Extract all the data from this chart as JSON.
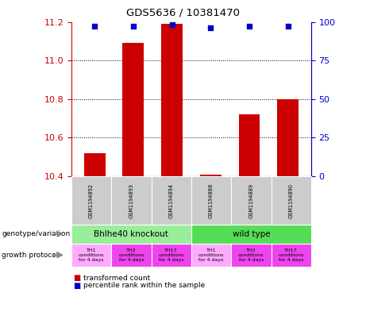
{
  "title": "GDS5636 / 10381470",
  "samples": [
    "GSM1194892",
    "GSM1194893",
    "GSM1194894",
    "GSM1194888",
    "GSM1194889",
    "GSM1194890"
  ],
  "transformed_counts": [
    10.52,
    11.09,
    11.19,
    10.41,
    10.72,
    10.8
  ],
  "percentile_ranks": [
    97,
    97,
    98,
    96,
    97,
    97
  ],
  "ylim": [
    10.4,
    11.2
  ],
  "yticks": [
    10.4,
    10.6,
    10.8,
    11.0,
    11.2
  ],
  "right_yticks": [
    0,
    25,
    50,
    75,
    100
  ],
  "right_ylim": [
    0,
    100
  ],
  "bar_color": "#cc0000",
  "dot_color": "#0000cc",
  "genotype_groups": [
    {
      "label": "Bhlhe40 knockout",
      "start": 0,
      "end": 3,
      "color": "#99ee99"
    },
    {
      "label": "wild type",
      "start": 3,
      "end": 6,
      "color": "#55dd55"
    }
  ],
  "proto_colors": [
    "#ffaaff",
    "#ee44ee",
    "#ee44ee",
    "#ffaaff",
    "#ee44ee",
    "#ee44ee"
  ],
  "proto_labels": [
    "TH1\nconditions\nfor 4 days",
    "TH2\nconditions\nfor 4 days",
    "TH17\nconditions\nfor 4 days",
    "TH1\nconditions\nfor 4 days",
    "TH2\nconditions\nfor 4 days",
    "TH17\nconditions\nfor 4 days"
  ],
  "sample_box_color": "#cccccc",
  "left_axis_color": "#cc0000",
  "right_axis_color": "#0000cc",
  "figsize": [
    4.61,
    3.93
  ],
  "dpi": 100
}
